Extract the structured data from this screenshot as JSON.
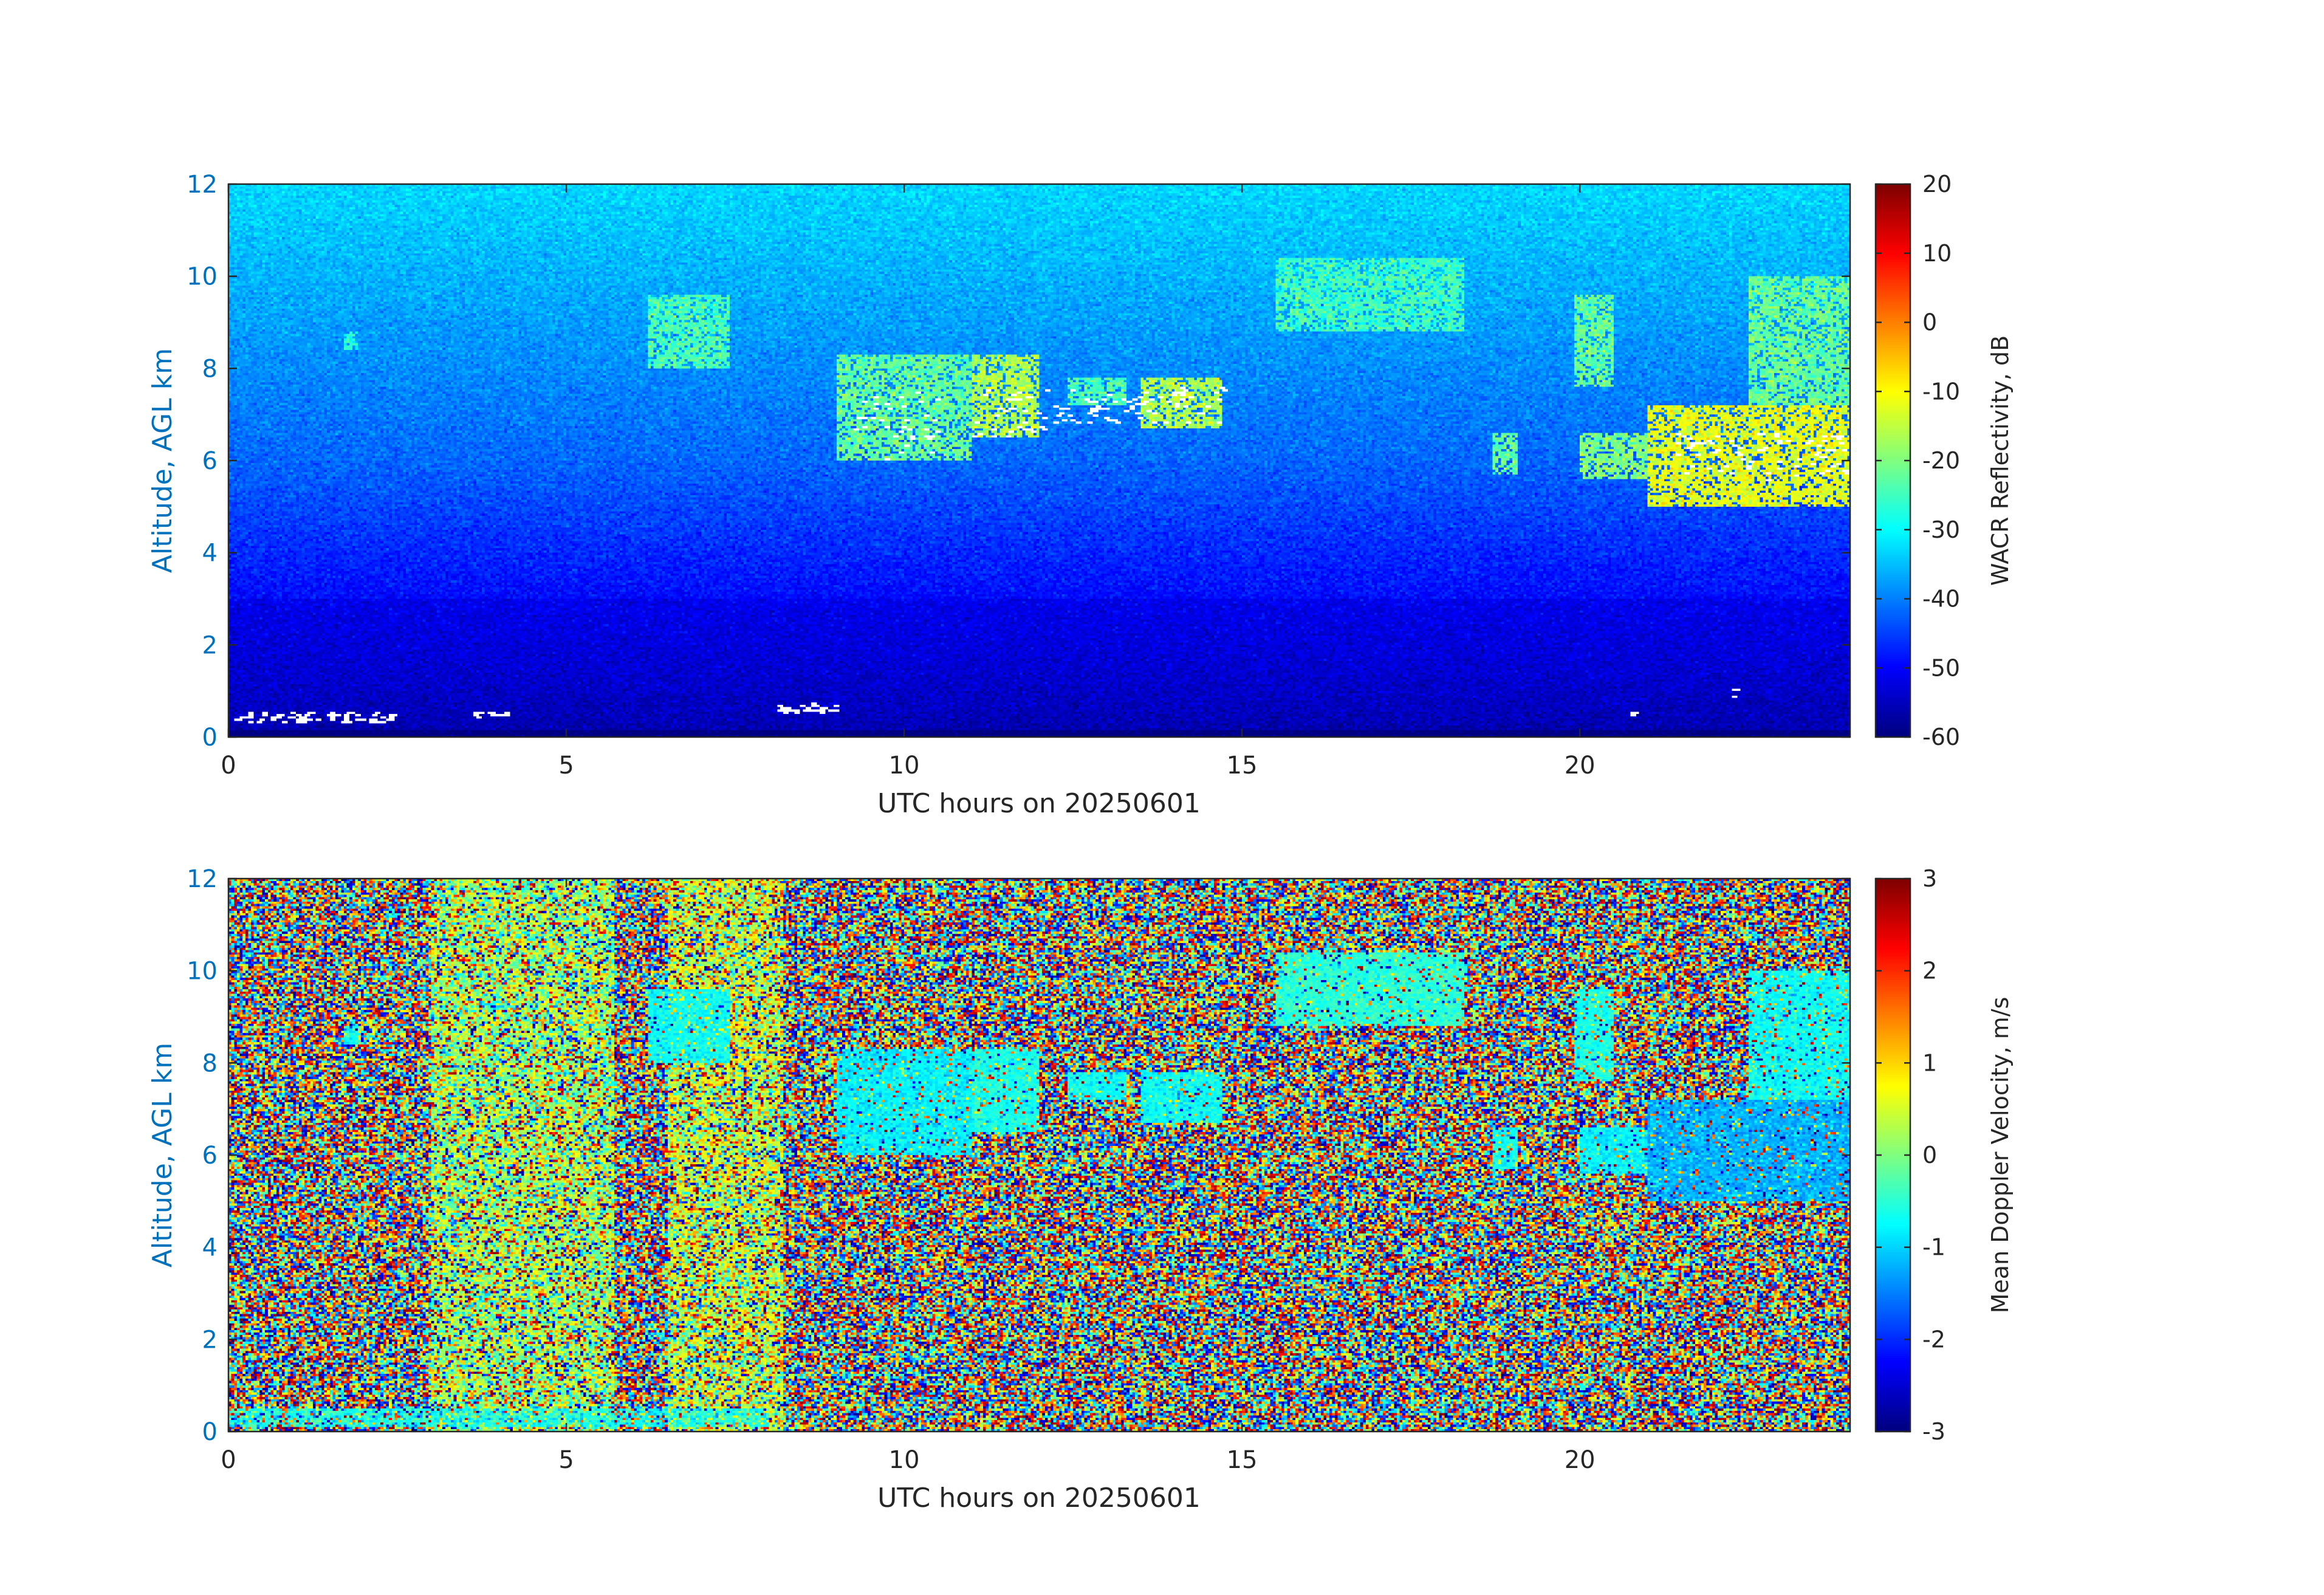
{
  "chart_data": [
    {
      "type": "heatmap",
      "title": "",
      "xlabel": "UTC hours on 20250601",
      "ylabel": "Altitude, AGL km",
      "xlim": [
        0,
        24
      ],
      "ylim": [
        0,
        12
      ],
      "xticks": [
        0,
        5,
        10,
        15,
        20
      ],
      "xtick_labels": [
        "0",
        "5",
        "10",
        "15",
        "20"
      ],
      "yticks": [
        0,
        2,
        4,
        6,
        8,
        10,
        12
      ],
      "ytick_labels": [
        "0",
        "2",
        "4",
        "6",
        "8",
        "10",
        "12"
      ],
      "colorbar": {
        "label": "WACR Reflectivity, dB",
        "colormap": "jet",
        "range": [
          -60,
          20
        ],
        "ticks": [
          20,
          10,
          0,
          -10,
          -20,
          -30,
          -40,
          -50,
          -60
        ],
        "tick_labels": [
          "20",
          "10",
          "0",
          "-10",
          "-20",
          "-30",
          "-40",
          "-50",
          "-60"
        ]
      },
      "background_noise_db": {
        "at_0_3_km": -57,
        "at_6_km": -42,
        "at_12_km": -33
      },
      "cloud_layers": [
        {
          "x": [
            1.7,
            1.9
          ],
          "y": [
            8.4,
            8.8
          ],
          "value": -28
        },
        {
          "x": [
            6.2,
            7.4
          ],
          "y": [
            8.0,
            9.6
          ],
          "value": -24
        },
        {
          "x": [
            9.0,
            11.0
          ],
          "y": [
            6.0,
            8.3
          ],
          "value": -22
        },
        {
          "x": [
            11.0,
            12.0
          ],
          "y": [
            6.5,
            8.3
          ],
          "value": -16
        },
        {
          "x": [
            12.4,
            13.3
          ],
          "y": [
            7.2,
            7.8
          ],
          "value": -24
        },
        {
          "x": [
            13.5,
            14.7
          ],
          "y": [
            6.7,
            7.8
          ],
          "value": -16
        },
        {
          "x": [
            15.5,
            18.3
          ],
          "y": [
            8.8,
            10.4
          ],
          "value": -25
        },
        {
          "x": [
            18.7,
            19.1
          ],
          "y": [
            5.7,
            6.6
          ],
          "value": -22
        },
        {
          "x": [
            19.9,
            20.5
          ],
          "y": [
            7.6,
            9.6
          ],
          "value": -22
        },
        {
          "x": [
            20.0,
            21.0
          ],
          "y": [
            5.6,
            6.6
          ],
          "value": -20
        },
        {
          "x": [
            21.0,
            24.0
          ],
          "y": [
            5.0,
            7.2
          ],
          "value": -12
        },
        {
          "x": [
            22.5,
            24.0
          ],
          "y": [
            7.2,
            10.0
          ],
          "value": -22
        }
      ],
      "missing_data_marks": [
        {
          "x": [
            0.0,
            2.5
          ],
          "y": [
            0.35,
            0.55
          ]
        },
        {
          "x": [
            3.6,
            4.1
          ],
          "y": [
            0.45,
            0.55
          ]
        },
        {
          "x": [
            8.0,
            9.0
          ],
          "y": [
            0.55,
            0.75
          ]
        },
        {
          "x": [
            9.2,
            10.5
          ],
          "y": [
            6.0,
            7.5
          ]
        },
        {
          "x": [
            11.0,
            12.1
          ],
          "y": [
            6.5,
            7.6
          ]
        },
        {
          "x": [
            12.2,
            14.7
          ],
          "y": [
            6.8,
            7.6
          ]
        },
        {
          "x": [
            20.7,
            20.8
          ],
          "y": [
            0.5,
            0.6
          ]
        },
        {
          "x": [
            22.2,
            22.3
          ],
          "y": [
            0.8,
            1.1
          ]
        },
        {
          "x": [
            21.4,
            24.0
          ],
          "y": [
            5.6,
            6.6
          ]
        }
      ]
    },
    {
      "type": "heatmap",
      "title": "",
      "xlabel": "UTC hours on 20250601",
      "ylabel": "Altitude, AGL km",
      "xlim": [
        0,
        24
      ],
      "ylim": [
        0,
        12
      ],
      "xticks": [
        0,
        5,
        10,
        15,
        20
      ],
      "xtick_labels": [
        "0",
        "5",
        "10",
        "15",
        "20"
      ],
      "yticks": [
        0,
        2,
        4,
        6,
        8,
        10,
        12
      ],
      "ytick_labels": [
        "0",
        "2",
        "4",
        "6",
        "8",
        "10",
        "12"
      ],
      "colorbar": {
        "label": "Mean Doppler Velocity, m/s",
        "colormap": "jet",
        "range": [
          -3,
          3
        ],
        "ticks": [
          3,
          2,
          1,
          0,
          -1,
          -2,
          -3
        ],
        "tick_labels": [
          "3",
          "2",
          "1",
          "0",
          "-1",
          "-2",
          "-3"
        ]
      },
      "background": "random noise over full range",
      "noise_bias_bands": [
        {
          "x": [
            3.0,
            5.7
          ],
          "center": 0.2
        },
        {
          "x": [
            6.5,
            8.2
          ],
          "center": 0.4
        }
      ],
      "cloud_layers": [
        {
          "x": [
            1.7,
            1.9
          ],
          "y": [
            8.4,
            8.8
          ],
          "value": -0.7
        },
        {
          "x": [
            6.2,
            7.4
          ],
          "y": [
            8.0,
            9.6
          ],
          "value": -0.7
        },
        {
          "x": [
            9.0,
            11.0
          ],
          "y": [
            6.0,
            8.3
          ],
          "value": -0.8
        },
        {
          "x": [
            11.0,
            12.0
          ],
          "y": [
            6.5,
            8.3
          ],
          "value": -0.6
        },
        {
          "x": [
            12.4,
            13.3
          ],
          "y": [
            7.2,
            7.8
          ],
          "value": -0.7
        },
        {
          "x": [
            13.5,
            14.7
          ],
          "y": [
            6.7,
            7.8
          ],
          "value": -0.7
        },
        {
          "x": [
            15.5,
            18.3
          ],
          "y": [
            8.8,
            10.4
          ],
          "value": -0.5
        },
        {
          "x": [
            18.7,
            19.1
          ],
          "y": [
            5.7,
            6.6
          ],
          "value": -0.7
        },
        {
          "x": [
            19.9,
            20.5
          ],
          "y": [
            7.6,
            9.6
          ],
          "value": -0.6
        },
        {
          "x": [
            20.0,
            21.0
          ],
          "y": [
            5.6,
            6.6
          ],
          "value": -0.8
        },
        {
          "x": [
            21.0,
            24.0
          ],
          "y": [
            5.0,
            7.2
          ],
          "value": -1.2
        },
        {
          "x": [
            22.5,
            24.0
          ],
          "y": [
            7.2,
            10.0
          ],
          "value": -0.7
        }
      ],
      "surface_band": {
        "x": [
          0.0,
          8.0
        ],
        "y": [
          0.1,
          0.5
        ],
        "value": -0.6
      }
    }
  ]
}
